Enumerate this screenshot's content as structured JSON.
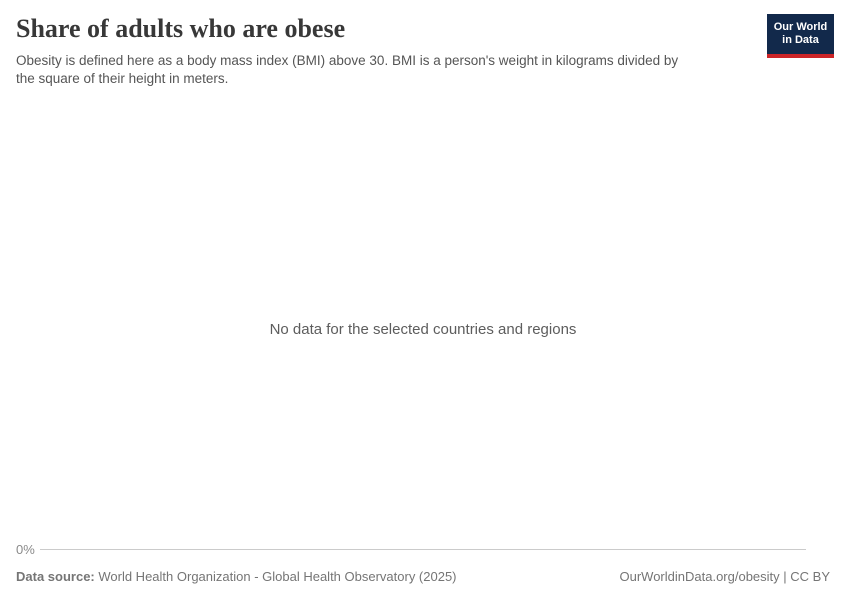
{
  "header": {
    "title": "Share of adults who are obese",
    "subtitle_line1": "Obesity is defined here as a body mass index (BMI) above 30. BMI is a person's weight in kilograms divided by",
    "subtitle_line2": "the square of their height in meters."
  },
  "logo": {
    "line1": "Our World",
    "line2": "in Data",
    "background_color": "#12294b",
    "accent_color": "#cc2427"
  },
  "chart": {
    "no_data_message": "No data for the selected countries and regions",
    "y_axis_tick_label": "0%",
    "axis_line_color": "#cbcbcb"
  },
  "footer": {
    "source_label": "Data source:",
    "source_text": " World Health Organization - Global Health Observatory (2025)",
    "link_text": "OurWorldinData.org/obesity | CC BY"
  },
  "chart_data": {
    "type": "line",
    "title": "Share of adults who are obese",
    "subtitle": "Obesity is defined here as a body mass index (BMI) above 30. BMI is a person's weight in kilograms divided by the square of their height in meters.",
    "categories": [],
    "series": [],
    "ytick_labels": [
      "0%"
    ],
    "grid": false,
    "legend_position": "none",
    "annotations": [
      "No data for the selected countries and regions"
    ]
  }
}
